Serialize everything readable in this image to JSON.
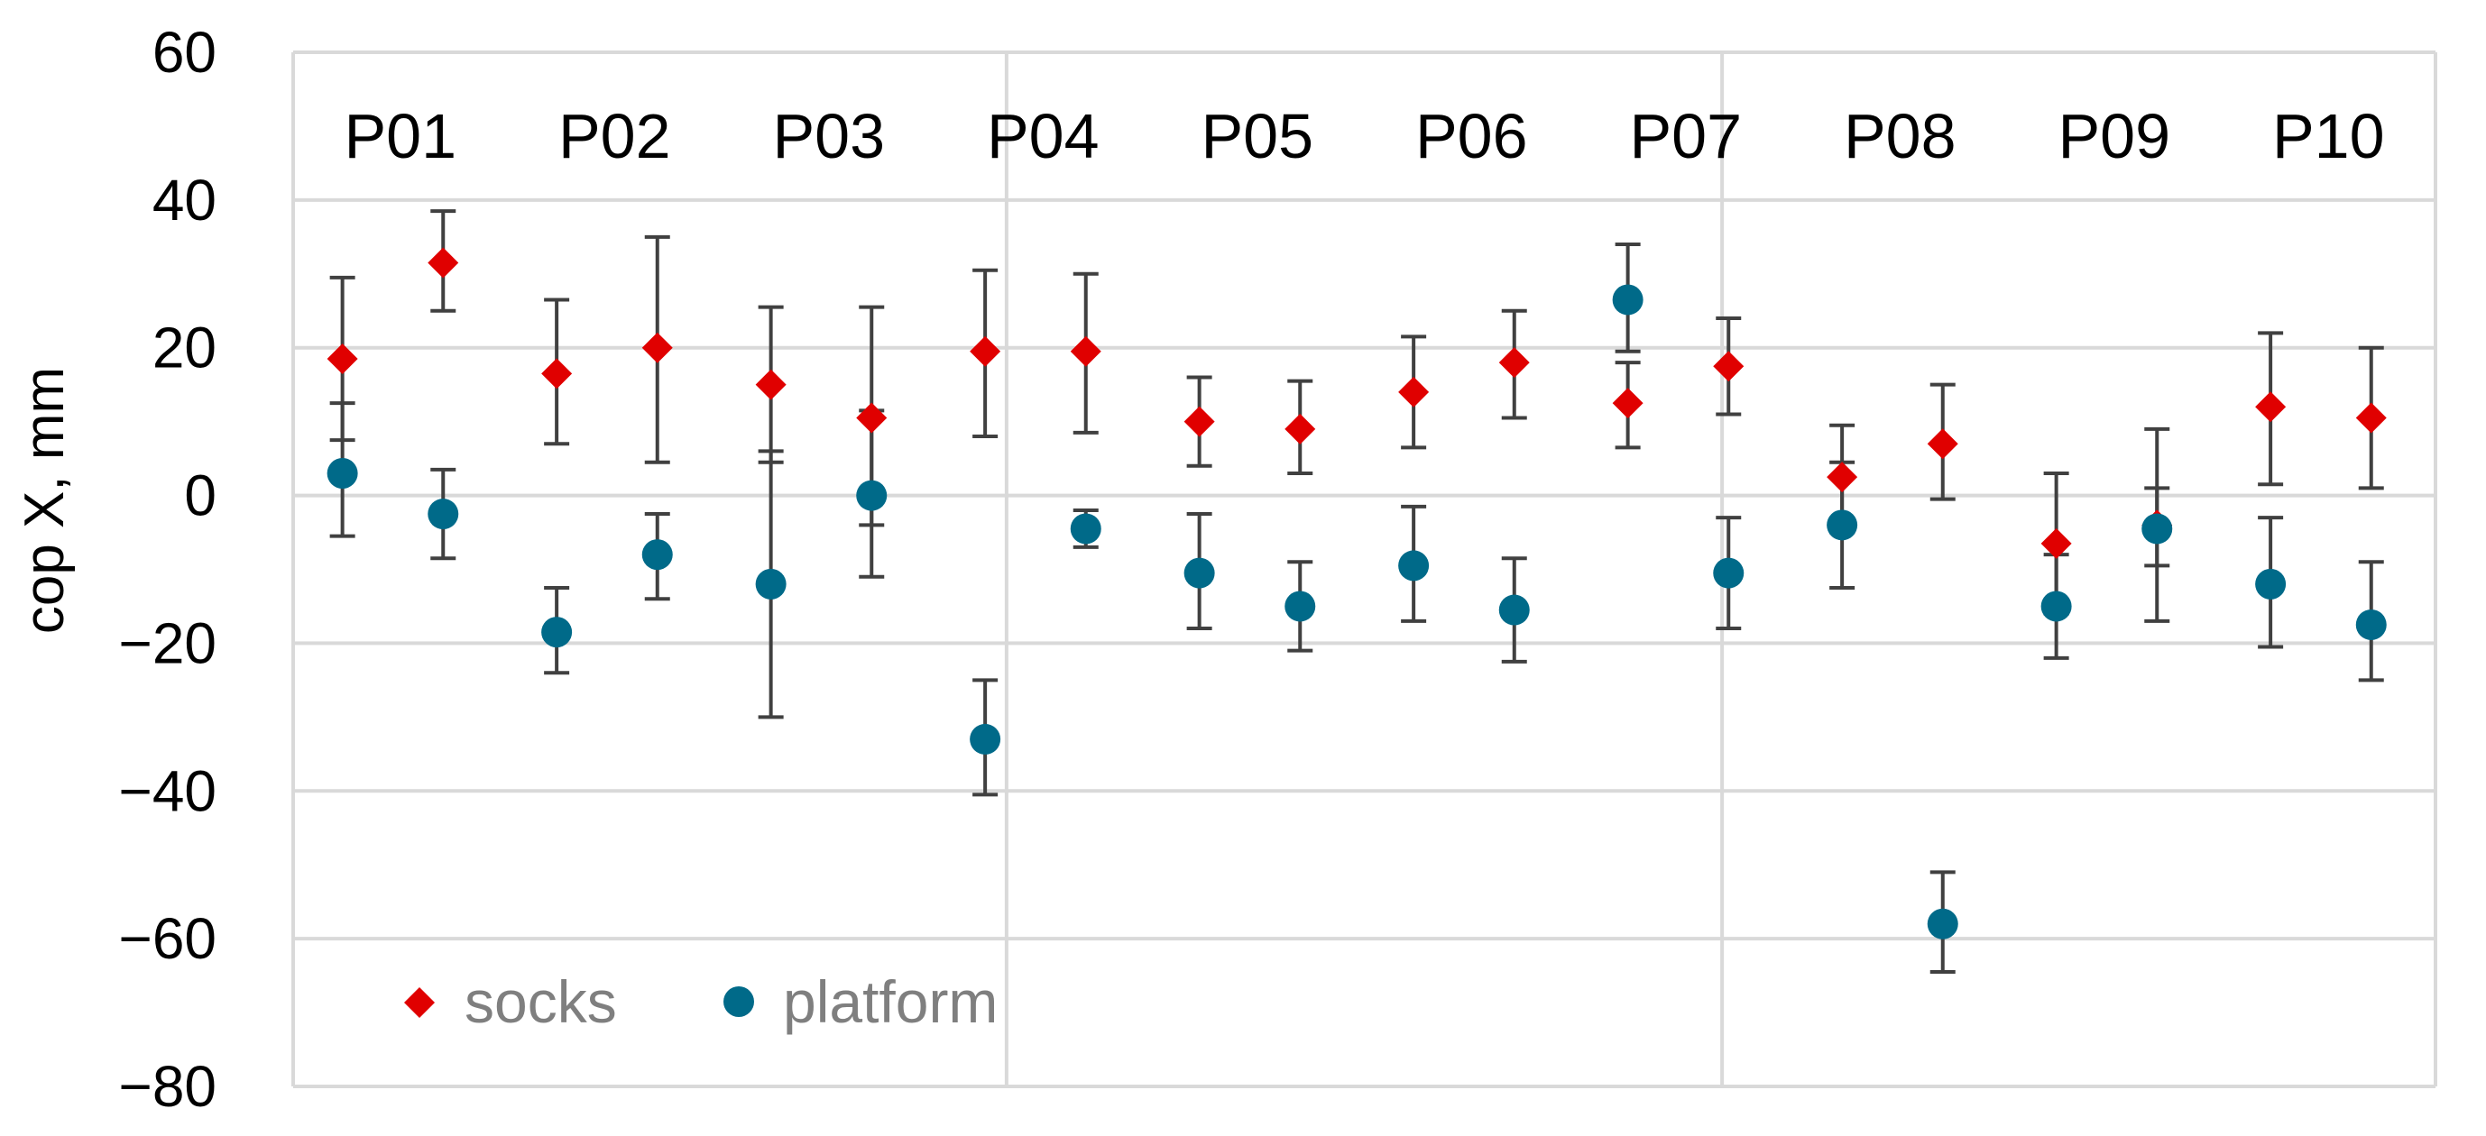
{
  "chart_data": {
    "type": "scatter",
    "title": "",
    "xlabel": "",
    "ylabel": "cop X, mm",
    "ylim": [
      -80,
      60
    ],
    "yticks": [
      60,
      40,
      20,
      0,
      -20,
      -40,
      -60,
      -80
    ],
    "ytick_labels": [
      "60",
      "40",
      "20",
      "0",
      "−20",
      "−40",
      "−60",
      "−80"
    ],
    "grid": true,
    "legend_position": "bottom-left",
    "panels": [
      "P01",
      "P02",
      "P03",
      "P04",
      "P05",
      "P06",
      "P07",
      "P08",
      "P09",
      "P10"
    ],
    "series": [
      {
        "name": "socks",
        "marker": "diamond",
        "color": "#e00000",
        "points": [
          {
            "panel": "P01",
            "slot": 1,
            "y": 18.5,
            "yerr_low": 7.5,
            "yerr_high": 29.5
          },
          {
            "panel": "P01",
            "slot": 2,
            "y": 31.5,
            "yerr_low": 25,
            "yerr_high": 38.5
          },
          {
            "panel": "P02",
            "slot": 1,
            "y": 16.5,
            "yerr_low": 7,
            "yerr_high": 26.5
          },
          {
            "panel": "P02",
            "slot": 2,
            "y": 20,
            "yerr_low": 4.5,
            "yerr_high": 35
          },
          {
            "panel": "P03",
            "slot": 1,
            "y": 15,
            "yerr_low": 4.5,
            "yerr_high": 25.5
          },
          {
            "panel": "P03",
            "slot": 2,
            "y": 10.5,
            "yerr_low": -4,
            "yerr_high": 25.5
          },
          {
            "panel": "P04",
            "slot": 1,
            "y": 19.5,
            "yerr_low": 8,
            "yerr_high": 30.5
          },
          {
            "panel": "P04",
            "slot": 2,
            "y": 19.5,
            "yerr_low": 8.5,
            "yerr_high": 30
          },
          {
            "panel": "P05",
            "slot": 1,
            "y": 10,
            "yerr_low": 4,
            "yerr_high": 16
          },
          {
            "panel": "P05",
            "slot": 2,
            "y": 9,
            "yerr_low": 3,
            "yerr_high": 15.5
          },
          {
            "panel": "P06",
            "slot": 1,
            "y": 14,
            "yerr_low": 6.5,
            "yerr_high": 21.5
          },
          {
            "panel": "P06",
            "slot": 2,
            "y": 18,
            "yerr_low": 10.5,
            "yerr_high": 25
          },
          {
            "panel": "P07",
            "slot": 1,
            "y": 12.5,
            "yerr_low": 6.5,
            "yerr_high": 18
          },
          {
            "panel": "P07",
            "slot": 2,
            "y": 17.5,
            "yerr_low": 11,
            "yerr_high": 24
          },
          {
            "panel": "P08",
            "slot": 1,
            "y": 2.5,
            "yerr_low": -5,
            "yerr_high": 9.5
          },
          {
            "panel": "P08",
            "slot": 2,
            "y": 7,
            "yerr_low": -0.5,
            "yerr_high": 15
          },
          {
            "panel": "P09",
            "slot": 1,
            "y": -6.5,
            "yerr_low": -16,
            "yerr_high": 3
          },
          {
            "panel": "P09",
            "slot": 2,
            "y": -4,
            "yerr_low": -17,
            "yerr_high": 9
          },
          {
            "panel": "P10",
            "slot": 1,
            "y": 12,
            "yerr_low": 1.5,
            "yerr_high": 22
          },
          {
            "panel": "P10",
            "slot": 2,
            "y": 10.5,
            "yerr_low": 1,
            "yerr_high": 20
          }
        ]
      },
      {
        "name": "platform",
        "marker": "circle",
        "color": "#006a89",
        "points": [
          {
            "panel": "P01",
            "slot": 1,
            "y": 3,
            "yerr_low": -5.5,
            "yerr_high": 12.5
          },
          {
            "panel": "P01",
            "slot": 2,
            "y": -2.5,
            "yerr_low": -8.5,
            "yerr_high": 3.5
          },
          {
            "panel": "P02",
            "slot": 1,
            "y": -18.5,
            "yerr_low": -24,
            "yerr_high": -12.5
          },
          {
            "panel": "P02",
            "slot": 2,
            "y": -8,
            "yerr_low": -14,
            "yerr_high": -2.5
          },
          {
            "panel": "P03",
            "slot": 1,
            "y": -12,
            "yerr_low": -30,
            "yerr_high": 6
          },
          {
            "panel": "P03",
            "slot": 2,
            "y": 0,
            "yerr_low": -11,
            "yerr_high": 11.5
          },
          {
            "panel": "P04",
            "slot": 1,
            "y": -33,
            "yerr_low": -40.5,
            "yerr_high": -25
          },
          {
            "panel": "P04",
            "slot": 2,
            "y": -4.5,
            "yerr_low": -7,
            "yerr_high": -2
          },
          {
            "panel": "P05",
            "slot": 1,
            "y": -10.5,
            "yerr_low": -18,
            "yerr_high": -2.5
          },
          {
            "panel": "P05",
            "slot": 2,
            "y": -15,
            "yerr_low": -21,
            "yerr_high": -9
          },
          {
            "panel": "P06",
            "slot": 1,
            "y": -9.5,
            "yerr_low": -17,
            "yerr_high": -1.5
          },
          {
            "panel": "P06",
            "slot": 2,
            "y": -15.5,
            "yerr_low": -22.5,
            "yerr_high": -8.5
          },
          {
            "panel": "P07",
            "slot": 1,
            "y": 26.5,
            "yerr_low": 19.5,
            "yerr_high": 34
          },
          {
            "panel": "P07",
            "slot": 2,
            "y": -10.5,
            "yerr_low": -18,
            "yerr_high": -3
          },
          {
            "panel": "P08",
            "slot": 1,
            "y": -4,
            "yerr_low": -12.5,
            "yerr_high": 4.5
          },
          {
            "panel": "P08",
            "slot": 2,
            "y": -58,
            "yerr_low": -64.5,
            "yerr_high": -51
          },
          {
            "panel": "P09",
            "slot": 1,
            "y": -15,
            "yerr_low": -22,
            "yerr_high": -8
          },
          {
            "panel": "P09",
            "slot": 2,
            "y": -4.5,
            "yerr_low": -9.5,
            "yerr_high": 1
          },
          {
            "panel": "P10",
            "slot": 1,
            "y": -12,
            "yerr_low": -20.5,
            "yerr_high": -3
          },
          {
            "panel": "P10",
            "slot": 2,
            "y": -17.5,
            "yerr_low": -25,
            "yerr_high": -9
          }
        ]
      }
    ]
  }
}
